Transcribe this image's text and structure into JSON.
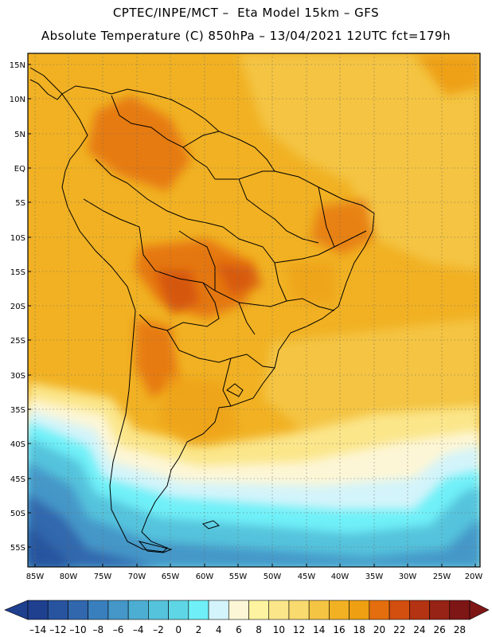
{
  "header": {
    "title_line1": "CPTEC/INPE/MCT –  Eta Model 15km – GFS",
    "title_line2": "Absolute Temperature (C) 850hPa – 13/04/2021 12UTC fct=179h"
  },
  "map": {
    "lat_labels": [
      "15N",
      "10N",
      "5N",
      "EQ",
      "5S",
      "10S",
      "15S",
      "20S",
      "25S",
      "30S",
      "35S",
      "40S",
      "45S",
      "50S",
      "55S"
    ],
    "lon_labels": [
      "85W",
      "80W",
      "75W",
      "70W",
      "65W",
      "60W",
      "55W",
      "50W",
      "45W",
      "40W",
      "35W",
      "30W",
      "25W",
      "20W"
    ]
  },
  "colorbar": {
    "labels": [
      "-14",
      "-12",
      "-10",
      "-8",
      "-6",
      "-4",
      "-2",
      "0",
      "2",
      "4",
      "6",
      "8",
      "10",
      "12",
      "14",
      "16",
      "18",
      "20",
      "22",
      "24",
      "26",
      "28"
    ],
    "colors": [
      "#1f3f8f",
      "#28549f",
      "#3067ad",
      "#3a7fbd",
      "#4497c8",
      "#4daed3",
      "#55c3dc",
      "#5fd6e6",
      "#6ff0f8",
      "#d3f4fa",
      "#fdf6d6",
      "#fdf3a0",
      "#fbe68a",
      "#f9da6e",
      "#f4c443",
      "#f1b123",
      "#eea012",
      "#e46e0e",
      "#d24f10",
      "#b43312",
      "#962315",
      "#7e1616"
    ]
  }
}
